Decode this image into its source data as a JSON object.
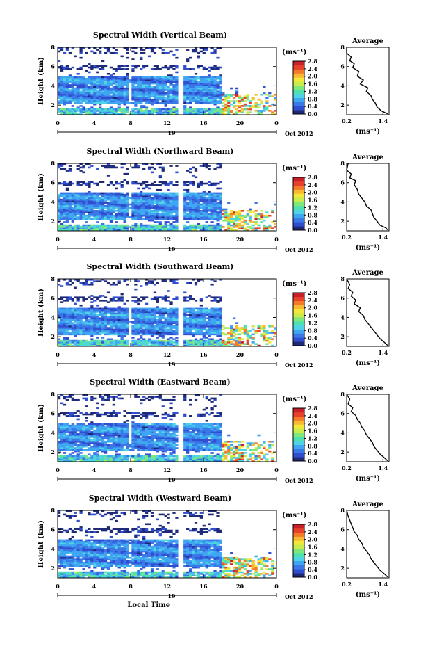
{
  "colors": {
    "colormap": [
      "#1e2a78",
      "#2f4fd0",
      "#3a78e8",
      "#3fa7f2",
      "#4fd3e6",
      "#4fe0b0",
      "#7fe87a",
      "#c8ec4c",
      "#f5e63a",
      "#f8b830",
      "#f47a28",
      "#e8402a",
      "#c91f2a"
    ]
  },
  "chart_data": [
    {
      "type": "heatmap",
      "title": "Spectral Width (Vertical Beam)",
      "ylabel": "Height (km)",
      "x_ticks": [
        "0",
        "4",
        "8",
        "12",
        "16",
        "20",
        "0"
      ],
      "y_ticks": [
        "2",
        "4",
        "6",
        "8"
      ],
      "date_label": "19",
      "month_label": "Oct 2012",
      "ylim": [
        1,
        8
      ],
      "xlim": [
        0,
        24
      ],
      "colorbar": {
        "unit": "(ms⁻¹)",
        "ticks": [
          "0.0",
          "0.4",
          "0.8",
          "1.2",
          "1.6",
          "2.0",
          "2.4",
          "2.8"
        ],
        "range": [
          0.0,
          2.8
        ]
      },
      "average": {
        "title": "Average",
        "unit": "(ms⁻¹)",
        "x_ticks": [
          "0.2",
          "1.4"
        ],
        "y_ticks": [
          "2",
          "4",
          "6",
          "8"
        ],
        "xlim": [
          0.2,
          1.6
        ],
        "ylim": [
          1,
          8
        ],
        "profile": [
          [
            0.2,
            8
          ],
          [
            0.2,
            7.4
          ],
          [
            0.35,
            7.0
          ],
          [
            0.3,
            6.6
          ],
          [
            0.45,
            6.3
          ],
          [
            0.4,
            5.9
          ],
          [
            0.6,
            5.5
          ],
          [
            0.55,
            5.0
          ],
          [
            0.75,
            4.6
          ],
          [
            0.65,
            4.2
          ],
          [
            0.9,
            3.8
          ],
          [
            0.85,
            3.4
          ],
          [
            1.0,
            3.0
          ],
          [
            1.05,
            2.6
          ],
          [
            1.15,
            2.2
          ],
          [
            1.2,
            1.8
          ],
          [
            1.35,
            1.4
          ],
          [
            1.55,
            1.1
          ]
        ]
      },
      "xlabel": ""
    },
    {
      "type": "heatmap",
      "title": "Spectral Width (Northward Beam)",
      "ylabel": "Height (km)",
      "x_ticks": [
        "0",
        "4",
        "8",
        "12",
        "16",
        "20",
        "0"
      ],
      "y_ticks": [
        "2",
        "4",
        "6",
        "8"
      ],
      "date_label": "19",
      "month_label": "Oct 2012",
      "ylim": [
        1,
        8
      ],
      "xlim": [
        0,
        24
      ],
      "colorbar": {
        "unit": "(ms⁻¹)",
        "ticks": [
          "0.0",
          "0.4",
          "0.8",
          "1.2",
          "1.6",
          "2.0",
          "2.4",
          "2.8"
        ],
        "range": [
          0.0,
          2.8
        ]
      },
      "average": {
        "title": "Average",
        "unit": "(ms⁻¹)",
        "x_ticks": [
          "0.2",
          "1.4"
        ],
        "y_ticks": [
          "2",
          "4",
          "6",
          "8"
        ],
        "xlim": [
          0.2,
          1.6
        ],
        "ylim": [
          1,
          8
        ],
        "profile": [
          [
            0.25,
            8
          ],
          [
            0.2,
            7.3
          ],
          [
            0.35,
            6.9
          ],
          [
            0.3,
            6.5
          ],
          [
            0.5,
            6.2
          ],
          [
            0.45,
            5.8
          ],
          [
            0.55,
            5.3
          ],
          [
            0.6,
            4.8
          ],
          [
            0.7,
            4.4
          ],
          [
            0.8,
            4.0
          ],
          [
            0.85,
            3.6
          ],
          [
            1.0,
            3.2
          ],
          [
            1.05,
            2.8
          ],
          [
            1.1,
            2.4
          ],
          [
            1.2,
            2.0
          ],
          [
            1.3,
            1.6
          ],
          [
            1.5,
            1.3
          ],
          [
            1.55,
            1.1
          ]
        ]
      },
      "xlabel": ""
    },
    {
      "type": "heatmap",
      "title": "Spectral Width (Southward Beam)",
      "ylabel": "Height (km)",
      "x_ticks": [
        "0",
        "4",
        "8",
        "12",
        "16",
        "20",
        "0"
      ],
      "y_ticks": [
        "2",
        "4",
        "6",
        "8"
      ],
      "date_label": "19",
      "month_label": "Oct 2012",
      "ylim": [
        1,
        8
      ],
      "xlim": [
        0,
        24
      ],
      "colorbar": {
        "unit": "(ms⁻¹)",
        "ticks": [
          "0.0",
          "0.4",
          "0.8",
          "1.2",
          "1.6",
          "2.0",
          "2.4",
          "2.8"
        ],
        "range": [
          0.0,
          2.8
        ]
      },
      "average": {
        "title": "Average",
        "unit": "(ms⁻¹)",
        "x_ticks": [
          "0.2",
          "1.4"
        ],
        "y_ticks": [
          "2",
          "4",
          "6",
          "8"
        ],
        "xlim": [
          0.2,
          1.6
        ],
        "ylim": [
          1,
          8
        ],
        "profile": [
          [
            0.2,
            8
          ],
          [
            0.3,
            7.4
          ],
          [
            0.25,
            7.0
          ],
          [
            0.4,
            6.6
          ],
          [
            0.35,
            6.2
          ],
          [
            0.5,
            5.8
          ],
          [
            0.45,
            5.4
          ],
          [
            0.65,
            5.0
          ],
          [
            0.6,
            4.6
          ],
          [
            0.75,
            4.2
          ],
          [
            0.8,
            3.8
          ],
          [
            0.9,
            3.4
          ],
          [
            1.0,
            3.0
          ],
          [
            1.1,
            2.6
          ],
          [
            1.2,
            2.2
          ],
          [
            1.3,
            1.8
          ],
          [
            1.45,
            1.4
          ],
          [
            1.55,
            1.1
          ]
        ]
      },
      "xlabel": ""
    },
    {
      "type": "heatmap",
      "title": "Spectral Width (Eastward Beam)",
      "ylabel": "Height (km)",
      "x_ticks": [
        "0",
        "4",
        "8",
        "12",
        "16",
        "20",
        "0"
      ],
      "y_ticks": [
        "2",
        "4",
        "6",
        "8"
      ],
      "date_label": "19",
      "month_label": "Oct 2012",
      "ylim": [
        1,
        8
      ],
      "xlim": [
        0,
        24
      ],
      "colorbar": {
        "unit": "(ms⁻¹)",
        "ticks": [
          "0.0",
          "0.4",
          "0.8",
          "1.2",
          "1.6",
          "2.0",
          "2.4",
          "2.8"
        ],
        "range": [
          0.0,
          2.8
        ]
      },
      "average": {
        "title": "Average",
        "unit": "(ms⁻¹)",
        "x_ticks": [
          "0.2",
          "1.4"
        ],
        "y_ticks": [
          "2",
          "4",
          "6",
          "8"
        ],
        "xlim": [
          0.2,
          1.6
        ],
        "ylim": [
          1,
          8
        ],
        "profile": [
          [
            0.2,
            8
          ],
          [
            0.3,
            7.5
          ],
          [
            0.25,
            7.0
          ],
          [
            0.4,
            6.6
          ],
          [
            0.35,
            6.2
          ],
          [
            0.5,
            5.8
          ],
          [
            0.55,
            5.4
          ],
          [
            0.65,
            5.0
          ],
          [
            0.7,
            4.6
          ],
          [
            0.8,
            4.2
          ],
          [
            0.85,
            3.8
          ],
          [
            0.95,
            3.4
          ],
          [
            1.05,
            3.0
          ],
          [
            1.1,
            2.6
          ],
          [
            1.2,
            2.2
          ],
          [
            1.3,
            1.8
          ],
          [
            1.45,
            1.4
          ],
          [
            1.55,
            1.1
          ]
        ]
      },
      "xlabel": ""
    },
    {
      "type": "heatmap",
      "title": "Spectral Width (Westward Beam)",
      "ylabel": "Height (km)",
      "x_ticks": [
        "0",
        "4",
        "8",
        "12",
        "16",
        "20",
        "0"
      ],
      "y_ticks": [
        "2",
        "4",
        "6",
        "8"
      ],
      "date_label": "19",
      "month_label": "Oct 2012",
      "ylim": [
        1,
        8
      ],
      "xlim": [
        0,
        24
      ],
      "colorbar": {
        "unit": "(ms⁻¹)",
        "ticks": [
          "0.0",
          "0.4",
          "0.8",
          "1.2",
          "1.6",
          "2.0",
          "2.4",
          "2.8"
        ],
        "range": [
          0.0,
          2.8
        ]
      },
      "average": {
        "title": "Average",
        "unit": "(ms⁻¹)",
        "x_ticks": [
          "0.2",
          "1.4"
        ],
        "y_ticks": [
          "2",
          "4",
          "6",
          "8"
        ],
        "xlim": [
          0.2,
          1.6
        ],
        "ylim": [
          1,
          8
        ],
        "profile": [
          [
            0.2,
            8
          ],
          [
            0.25,
            7.4
          ],
          [
            0.3,
            7.0
          ],
          [
            0.35,
            6.6
          ],
          [
            0.4,
            6.2
          ],
          [
            0.45,
            5.8
          ],
          [
            0.55,
            5.4
          ],
          [
            0.6,
            5.0
          ],
          [
            0.7,
            4.6
          ],
          [
            0.75,
            4.2
          ],
          [
            0.85,
            3.8
          ],
          [
            0.95,
            3.4
          ],
          [
            1.0,
            3.0
          ],
          [
            1.1,
            2.6
          ],
          [
            1.2,
            2.2
          ],
          [
            1.3,
            1.8
          ],
          [
            1.45,
            1.4
          ],
          [
            1.55,
            1.1
          ]
        ]
      },
      "xlabel": "Local Time"
    }
  ]
}
